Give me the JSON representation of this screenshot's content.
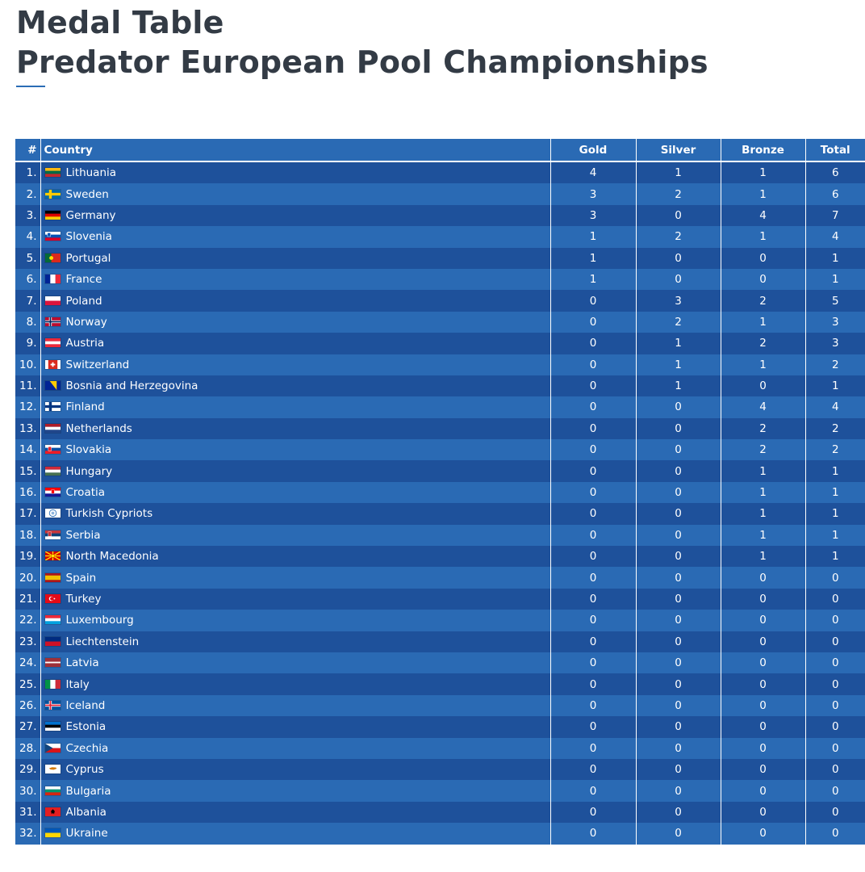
{
  "page": {
    "title_line1": "Medal Table",
    "title_line2": "Predator European Pool Championships"
  },
  "table": {
    "headers": {
      "rank": "#",
      "country": "Country",
      "gold": "Gold",
      "silver": "Silver",
      "bronze": "Bronze",
      "total": "Total"
    },
    "rows": [
      {
        "rank": "1.",
        "country": "Lithuania",
        "flag": "lithuania-flag-icon",
        "gold": 4,
        "silver": 1,
        "bronze": 1,
        "total": 6
      },
      {
        "rank": "2.",
        "country": "Sweden",
        "flag": "sweden-flag-icon",
        "gold": 3,
        "silver": 2,
        "bronze": 1,
        "total": 6
      },
      {
        "rank": "3.",
        "country": "Germany",
        "flag": "germany-flag-icon",
        "gold": 3,
        "silver": 0,
        "bronze": 4,
        "total": 7
      },
      {
        "rank": "4.",
        "country": "Slovenia",
        "flag": "slovenia-flag-icon",
        "gold": 1,
        "silver": 2,
        "bronze": 1,
        "total": 4
      },
      {
        "rank": "5.",
        "country": "Portugal",
        "flag": "portugal-flag-icon",
        "gold": 1,
        "silver": 0,
        "bronze": 0,
        "total": 1
      },
      {
        "rank": "6.",
        "country": "France",
        "flag": "france-flag-icon",
        "gold": 1,
        "silver": 0,
        "bronze": 0,
        "total": 1
      },
      {
        "rank": "7.",
        "country": "Poland",
        "flag": "poland-flag-icon",
        "gold": 0,
        "silver": 3,
        "bronze": 2,
        "total": 5
      },
      {
        "rank": "8.",
        "country": "Norway",
        "flag": "norway-flag-icon",
        "gold": 0,
        "silver": 2,
        "bronze": 1,
        "total": 3
      },
      {
        "rank": "9.",
        "country": "Austria",
        "flag": "austria-flag-icon",
        "gold": 0,
        "silver": 1,
        "bronze": 2,
        "total": 3
      },
      {
        "rank": "10.",
        "country": "Switzerland",
        "flag": "switzerland-flag-icon",
        "gold": 0,
        "silver": 1,
        "bronze": 1,
        "total": 2
      },
      {
        "rank": "11.",
        "country": "Bosnia and Herzegovina",
        "flag": "bosnia-flag-icon",
        "gold": 0,
        "silver": 1,
        "bronze": 0,
        "total": 1
      },
      {
        "rank": "12.",
        "country": "Finland",
        "flag": "finland-flag-icon",
        "gold": 0,
        "silver": 0,
        "bronze": 4,
        "total": 4
      },
      {
        "rank": "13.",
        "country": "Netherlands",
        "flag": "netherlands-flag-icon",
        "gold": 0,
        "silver": 0,
        "bronze": 2,
        "total": 2
      },
      {
        "rank": "14.",
        "country": "Slovakia",
        "flag": "slovakia-flag-icon",
        "gold": 0,
        "silver": 0,
        "bronze": 2,
        "total": 2
      },
      {
        "rank": "15.",
        "country": "Hungary",
        "flag": "hungary-flag-icon",
        "gold": 0,
        "silver": 0,
        "bronze": 1,
        "total": 1
      },
      {
        "rank": "16.",
        "country": "Croatia",
        "flag": "croatia-flag-icon",
        "gold": 0,
        "silver": 0,
        "bronze": 1,
        "total": 1
      },
      {
        "rank": "17.",
        "country": "Turkish Cypriots",
        "flag": "turkish-cypriots-flag-icon",
        "gold": 0,
        "silver": 0,
        "bronze": 1,
        "total": 1
      },
      {
        "rank": "18.",
        "country": "Serbia",
        "flag": "serbia-flag-icon",
        "gold": 0,
        "silver": 0,
        "bronze": 1,
        "total": 1
      },
      {
        "rank": "19.",
        "country": "North Macedonia",
        "flag": "north-macedonia-flag-icon",
        "gold": 0,
        "silver": 0,
        "bronze": 1,
        "total": 1
      },
      {
        "rank": "20.",
        "country": "Spain",
        "flag": "spain-flag-icon",
        "gold": 0,
        "silver": 0,
        "bronze": 0,
        "total": 0
      },
      {
        "rank": "21.",
        "country": "Turkey",
        "flag": "turkey-flag-icon",
        "gold": 0,
        "silver": 0,
        "bronze": 0,
        "total": 0
      },
      {
        "rank": "22.",
        "country": "Luxembourg",
        "flag": "luxembourg-flag-icon",
        "gold": 0,
        "silver": 0,
        "bronze": 0,
        "total": 0
      },
      {
        "rank": "23.",
        "country": "Liechtenstein",
        "flag": "liechtenstein-flag-icon",
        "gold": 0,
        "silver": 0,
        "bronze": 0,
        "total": 0
      },
      {
        "rank": "24.",
        "country": "Latvia",
        "flag": "latvia-flag-icon",
        "gold": 0,
        "silver": 0,
        "bronze": 0,
        "total": 0
      },
      {
        "rank": "25.",
        "country": "Italy",
        "flag": "italy-flag-icon",
        "gold": 0,
        "silver": 0,
        "bronze": 0,
        "total": 0
      },
      {
        "rank": "26.",
        "country": "Iceland",
        "flag": "iceland-flag-icon",
        "gold": 0,
        "silver": 0,
        "bronze": 0,
        "total": 0
      },
      {
        "rank": "27.",
        "country": "Estonia",
        "flag": "estonia-flag-icon",
        "gold": 0,
        "silver": 0,
        "bronze": 0,
        "total": 0
      },
      {
        "rank": "28.",
        "country": "Czechia",
        "flag": "czechia-flag-icon",
        "gold": 0,
        "silver": 0,
        "bronze": 0,
        "total": 0
      },
      {
        "rank": "29.",
        "country": "Cyprus",
        "flag": "cyprus-flag-icon",
        "gold": 0,
        "silver": 0,
        "bronze": 0,
        "total": 0
      },
      {
        "rank": "30.",
        "country": "Bulgaria",
        "flag": "bulgaria-flag-icon",
        "gold": 0,
        "silver": 0,
        "bronze": 0,
        "total": 0
      },
      {
        "rank": "31.",
        "country": "Albania",
        "flag": "albania-flag-icon",
        "gold": 0,
        "silver": 0,
        "bronze": 0,
        "total": 0
      },
      {
        "rank": "32.",
        "country": "Ukraine",
        "flag": "ukraine-flag-icon",
        "gold": 0,
        "silver": 0,
        "bronze": 0,
        "total": 0
      }
    ]
  },
  "colors": {
    "title": "#333b45",
    "accent": "#2a6db5",
    "row_dark": "#1e519b",
    "row_light": "#2a6ab4",
    "text": "#ffffff"
  }
}
